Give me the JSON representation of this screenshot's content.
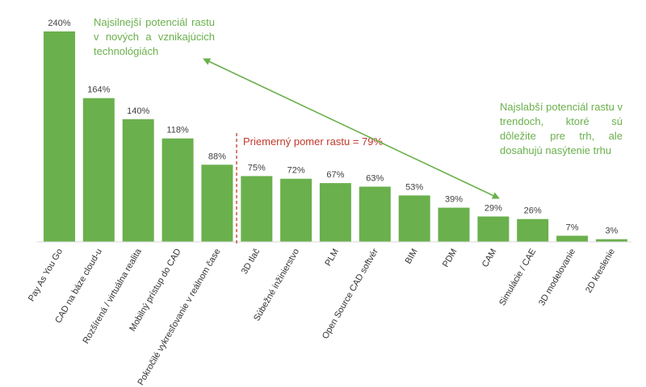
{
  "chart_data": {
    "type": "bar",
    "categories": [
      "Pay As You Go",
      "CAD na báze cloud-u",
      "Rozšírená / virtuálna realita",
      "Mobilný prístup do CAD",
      "Pokročilé vykresľovanie v reálnom čase",
      "3D tlač",
      "Súbežné inžinierstvo",
      "PLM",
      "Open Source CAD softvér",
      "BIM",
      "PDM",
      "CAM",
      "Simulácie / CAE",
      "3D modelovanie",
      "2D kreslenie"
    ],
    "values": [
      240,
      164,
      140,
      118,
      88,
      75,
      72,
      67,
      63,
      53,
      39,
      29,
      26,
      7,
      3
    ],
    "value_labels": [
      "240%",
      "164%",
      "140%",
      "118%",
      "88%",
      "75%",
      "72%",
      "67%",
      "63%",
      "53%",
      "39%",
      "29%",
      "26%",
      "7%",
      "3%"
    ],
    "unit": "%",
    "ylim": [
      0,
      240
    ],
    "grid": false,
    "legend": "none",
    "bar_color": "#6ab04c",
    "reference_line": {
      "label": "Priemerný pomer rastu = 79%",
      "value": 79,
      "color": "#c0392b"
    },
    "annotations": [
      {
        "id": "left",
        "text": "Najsilnejší potenciál rastu v nových a vznikajúcich technológiách"
      },
      {
        "id": "right",
        "text": "Najslabší potenciál rastu v trendoch, ktoré sú dôležite pre trh, ale dosahujú nasýtenie trhu"
      }
    ],
    "annotation_color": "#6ab04c"
  }
}
